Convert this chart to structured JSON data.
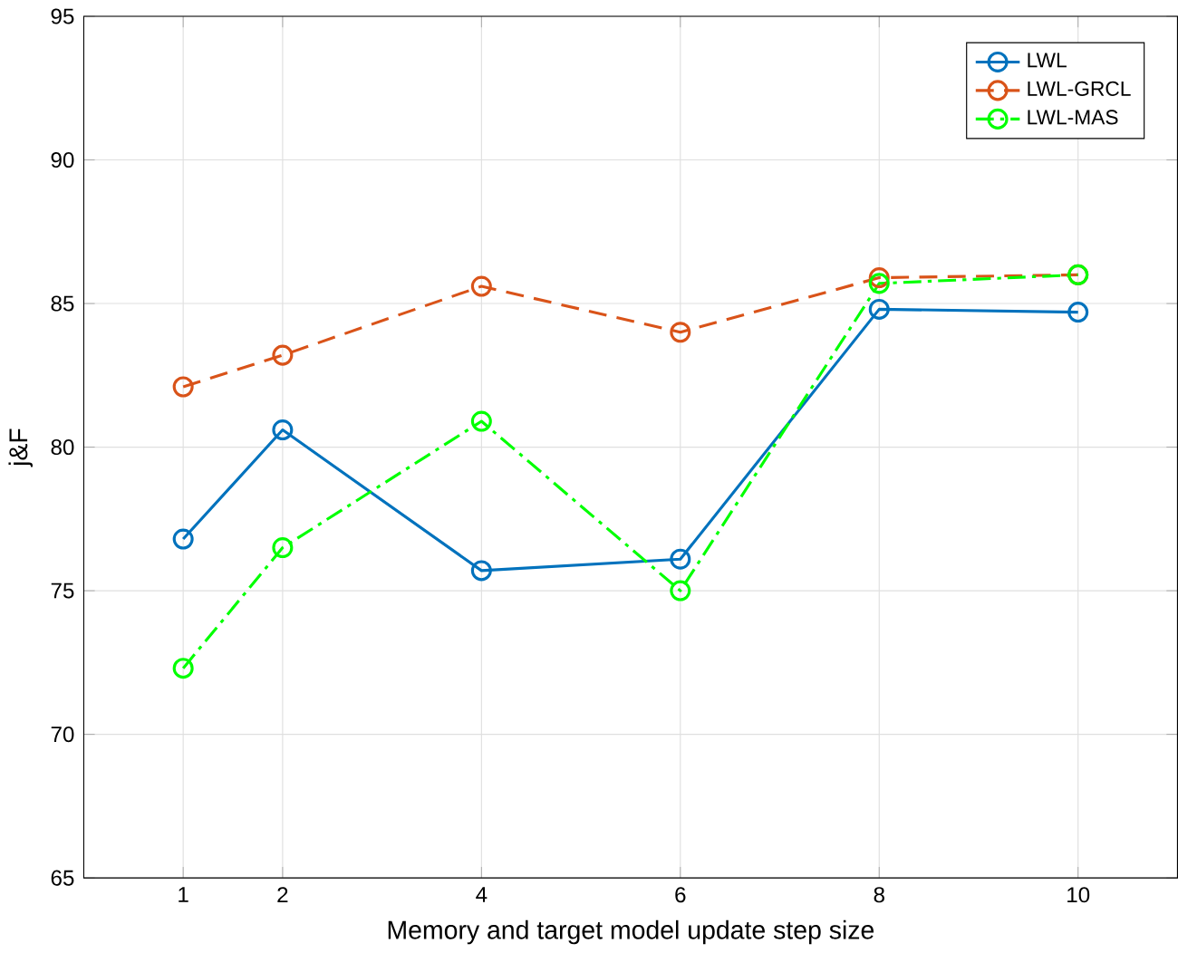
{
  "chart_data": {
    "type": "line",
    "xlabel": "Memory and target model update step size",
    "ylabel": "j&F",
    "x": [
      1,
      2,
      4,
      6,
      8,
      10
    ],
    "series": [
      {
        "name": "LWL",
        "color": "#0072bd",
        "line_style": "solid",
        "values": [
          76.8,
          80.6,
          75.7,
          76.1,
          84.8,
          84.7
        ]
      },
      {
        "name": "LWL-GRCL",
        "color": "#d95319",
        "line_style": "dashed",
        "values": [
          82.1,
          83.2,
          85.6,
          84.0,
          85.9,
          86.0
        ]
      },
      {
        "name": "LWL-MAS",
        "color": "#00ff00",
        "line_style": "dashdot",
        "values": [
          72.3,
          76.5,
          80.9,
          75.0,
          85.7,
          86.0
        ]
      }
    ],
    "xlim": [
      0,
      11
    ],
    "ylim": [
      65,
      95
    ],
    "xticks": [
      1,
      2,
      4,
      6,
      8,
      10
    ],
    "yticks": [
      65,
      70,
      75,
      80,
      85,
      90,
      95
    ],
    "grid": true,
    "legend": "top right",
    "marker": "circle"
  }
}
